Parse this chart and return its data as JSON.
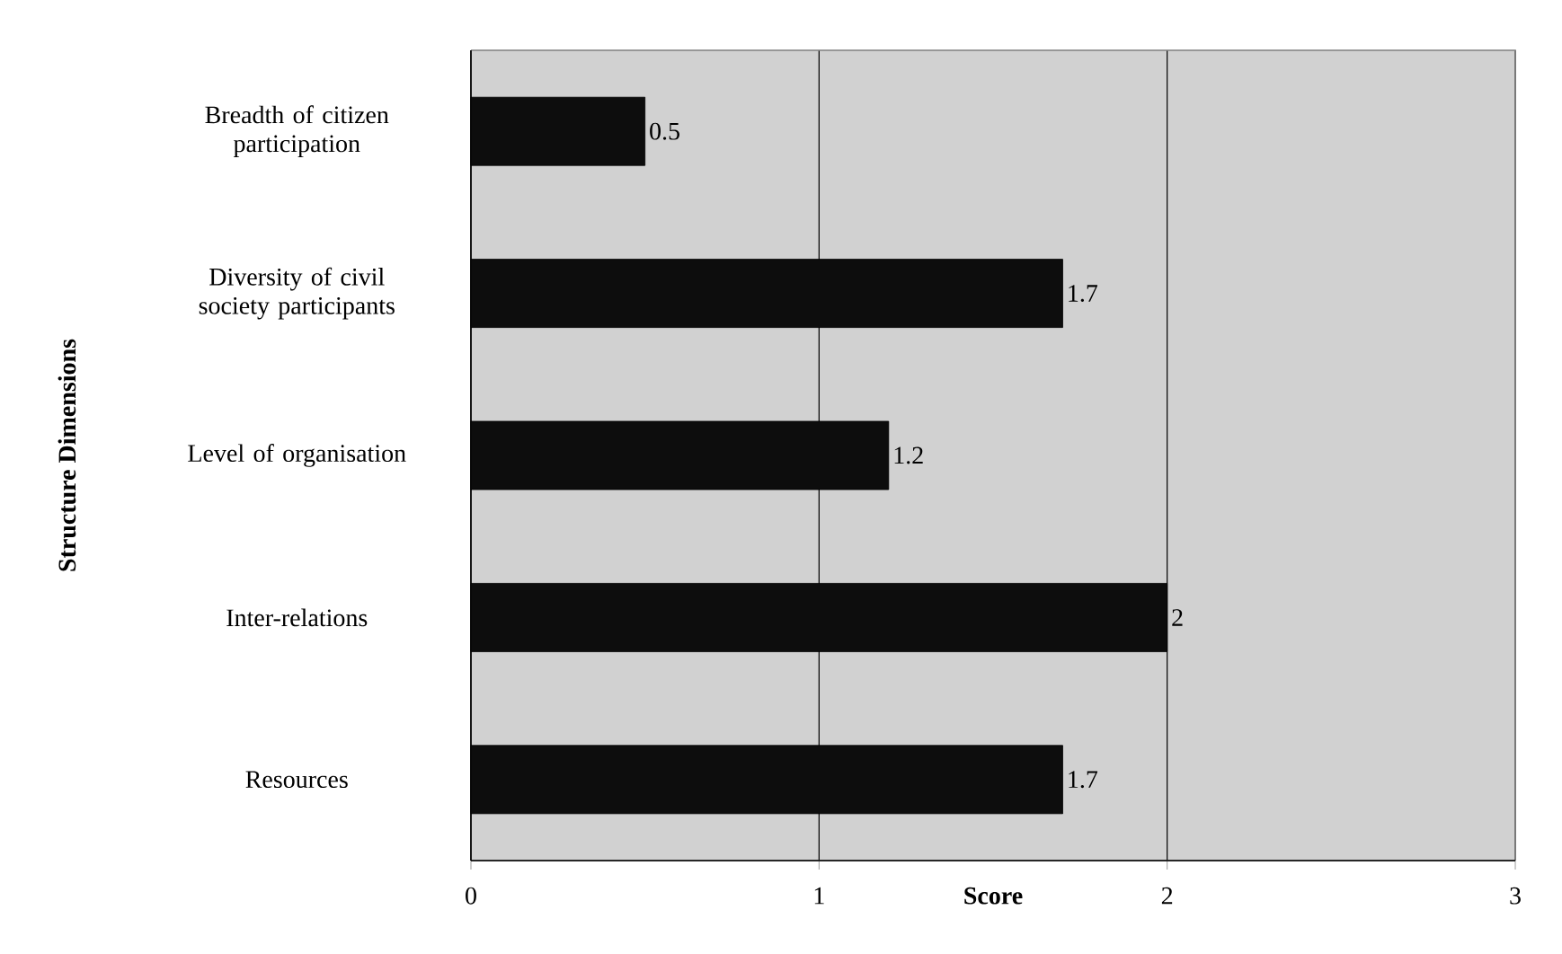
{
  "chart_data": {
    "type": "bar",
    "orientation": "horizontal",
    "categories": [
      "Breadth of citizen participation",
      "Diversity of civil society participants",
      "Level of organisation",
      "Inter-relations",
      "Resources"
    ],
    "values": [
      0.5,
      1.7,
      1.2,
      2,
      1.7
    ],
    "color": "#0d0d0d",
    "xlim": [
      0,
      3
    ],
    "xticks": [
      0,
      1,
      2,
      3
    ],
    "grid": "x",
    "data_labels": true,
    "xlabel": "Score",
    "ylabel": "Structure Dimensions"
  }
}
